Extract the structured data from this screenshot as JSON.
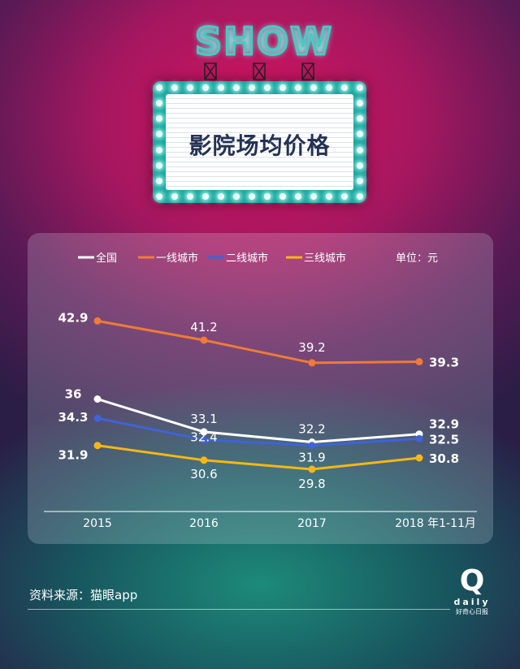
{
  "header": {
    "sign_word": "SHOW",
    "title": "影院场均价格"
  },
  "chart_data": {
    "type": "line",
    "categories": [
      "2015",
      "2016",
      "2017",
      "2018 年1-11月"
    ],
    "unit_note": "单位：元",
    "series": [
      {
        "name": "全国",
        "color": "#ffffff",
        "values": [
          36,
          33.1,
          32.2,
          32.9
        ],
        "labels": [
          "36",
          "33.1",
          "32.2",
          "32.9"
        ]
      },
      {
        "name": "一线城市",
        "color": "#f07a38",
        "values": [
          42.9,
          41.2,
          39.2,
          39.3
        ],
        "labels": [
          "42.9",
          "41.2",
          "39.2",
          "39.3"
        ]
      },
      {
        "name": "二线城市",
        "color": "#3f63d8",
        "values": [
          34.3,
          32.4,
          31.9,
          32.5
        ],
        "labels": [
          "34.3",
          "32.4",
          "31.9",
          "32.5"
        ]
      },
      {
        "name": "三线城市",
        "color": "#f5b717",
        "values": [
          31.9,
          30.6,
          29.8,
          30.8
        ],
        "labels": [
          "31.9",
          "30.6",
          "29.8",
          "30.8"
        ]
      }
    ],
    "ylim": [
      27,
      45.5
    ],
    "grid": false,
    "legend_position": "top"
  },
  "footer": {
    "source": "资料来源：猫眼app",
    "logo_letter": "Q",
    "logo_word": "daily",
    "logo_cn": "好奇心日报"
  }
}
